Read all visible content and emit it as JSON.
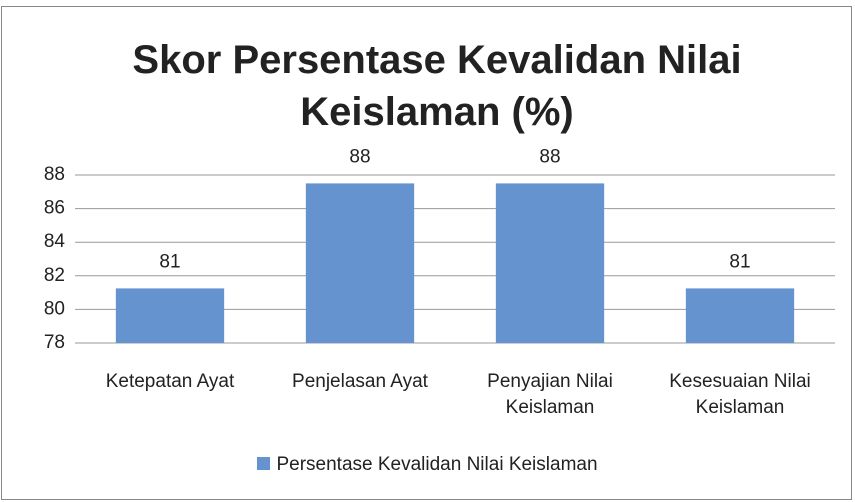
{
  "chart_data": {
    "type": "bar",
    "title": "Skor Persentase Kevalidan Nilai Keislaman (%)",
    "categories": [
      "Ketepatan Ayat",
      "Penjelasan Ayat",
      "Penyajian Nilai Keislaman",
      "Kesesuaian Nilai Keislaman"
    ],
    "series": [
      {
        "name": "Persentase Kevalidan Nilai Keislaman",
        "color": "#6593cf",
        "values": [
          81.25,
          87.5,
          87.5,
          81.25
        ],
        "value_labels": [
          "81",
          "88",
          "88",
          "81"
        ]
      }
    ],
    "ylim": [
      78,
      88
    ],
    "yticks": [
      78,
      80,
      82,
      84,
      86,
      88
    ],
    "grid": true,
    "legend": "bottom"
  }
}
